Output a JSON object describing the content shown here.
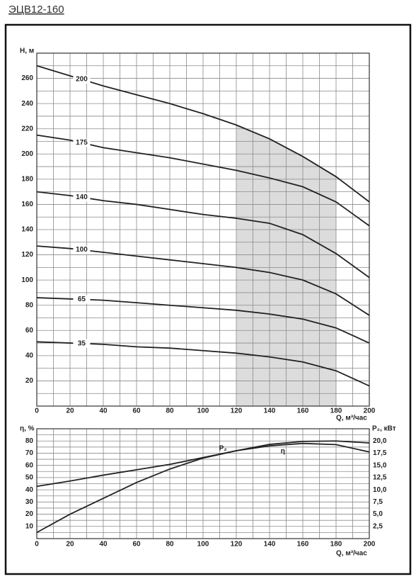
{
  "chart_data": [
    {
      "type": "line",
      "title": "ЭЦВ12-160",
      "xlabel": "Q, м³/час",
      "ylabel": "H, м",
      "x": [
        0,
        20,
        40,
        60,
        80,
        100,
        120,
        140,
        160,
        180,
        200
      ],
      "series": [
        {
          "name": "200",
          "color": "#222222",
          "values": [
            270,
            262,
            254,
            247,
            240,
            232,
            223,
            212,
            198,
            182,
            162
          ]
        },
        {
          "name": "175",
          "color": "#222222",
          "values": [
            215,
            211,
            205,
            201,
            197,
            192,
            187,
            181,
            174,
            162,
            143
          ]
        },
        {
          "name": "140",
          "color": "#222222",
          "values": [
            170,
            167,
            163,
            160,
            156,
            152,
            149,
            145,
            136,
            121,
            102
          ]
        },
        {
          "name": "100",
          "color": "#222222",
          "values": [
            127,
            125,
            122,
            119,
            116,
            113,
            110,
            106,
            100,
            89,
            72
          ]
        },
        {
          "name": "65",
          "color": "#222222",
          "values": [
            86,
            85,
            84,
            82,
            80,
            78,
            76,
            73,
            69,
            62,
            50
          ]
        },
        {
          "name": "35",
          "color": "#222222",
          "values": [
            51,
            50,
            49,
            47,
            46,
            44,
            42,
            39,
            35,
            28,
            16
          ]
        }
      ],
      "xlim": [
        0,
        200
      ],
      "ylim": [
        0,
        280
      ],
      "xticks": [
        0,
        20,
        40,
        60,
        80,
        100,
        120,
        140,
        160,
        180,
        200
      ],
      "yticks": [
        20,
        40,
        60,
        80,
        100,
        120,
        140,
        160,
        180,
        200,
        220,
        240,
        260
      ],
      "grid": true,
      "shaded_x_range": [
        120,
        180
      ],
      "shade_color": "#dcdcdc"
    },
    {
      "type": "line",
      "xlabel": "Q, м³/час",
      "ylabel": "η, %",
      "y2label": "P₂, кВт",
      "x": [
        0,
        20,
        40,
        60,
        80,
        100,
        120,
        140,
        160,
        180,
        200
      ],
      "series": [
        {
          "name": "η",
          "color": "#222222",
          "values": [
            5,
            20,
            33,
            46,
            57,
            66,
            72,
            76,
            78,
            77,
            71
          ]
        },
        {
          "name": "P₂",
          "color": "#222222",
          "axis": "y2",
          "values": [
            10.7,
            11.8,
            13.0,
            14.1,
            15.2,
            16.6,
            18.0,
            19.3,
            19.9,
            20.0,
            19.6
          ]
        }
      ],
      "xlim": [
        0,
        200
      ],
      "ylim": [
        0,
        90
      ],
      "y2lim": [
        0,
        22.5
      ],
      "xticks": [
        0,
        20,
        40,
        60,
        80,
        100,
        120,
        140,
        160,
        180,
        200
      ],
      "yticks": [
        10,
        20,
        30,
        40,
        50,
        60,
        70,
        80
      ],
      "y2ticks": [
        {
          "value": 2.5,
          "label": "2,5"
        },
        {
          "value": 5,
          "label": "5,0"
        },
        {
          "value": 7.5,
          "label": "7,5"
        },
        {
          "value": 10,
          "label": "10,0"
        },
        {
          "value": 12.5,
          "label": "12,5"
        },
        {
          "value": 15,
          "label": "15,0"
        },
        {
          "value": 17.5,
          "label": "17,5"
        },
        {
          "value": 20,
          "label": "20,0"
        }
      ],
      "grid": true
    }
  ]
}
